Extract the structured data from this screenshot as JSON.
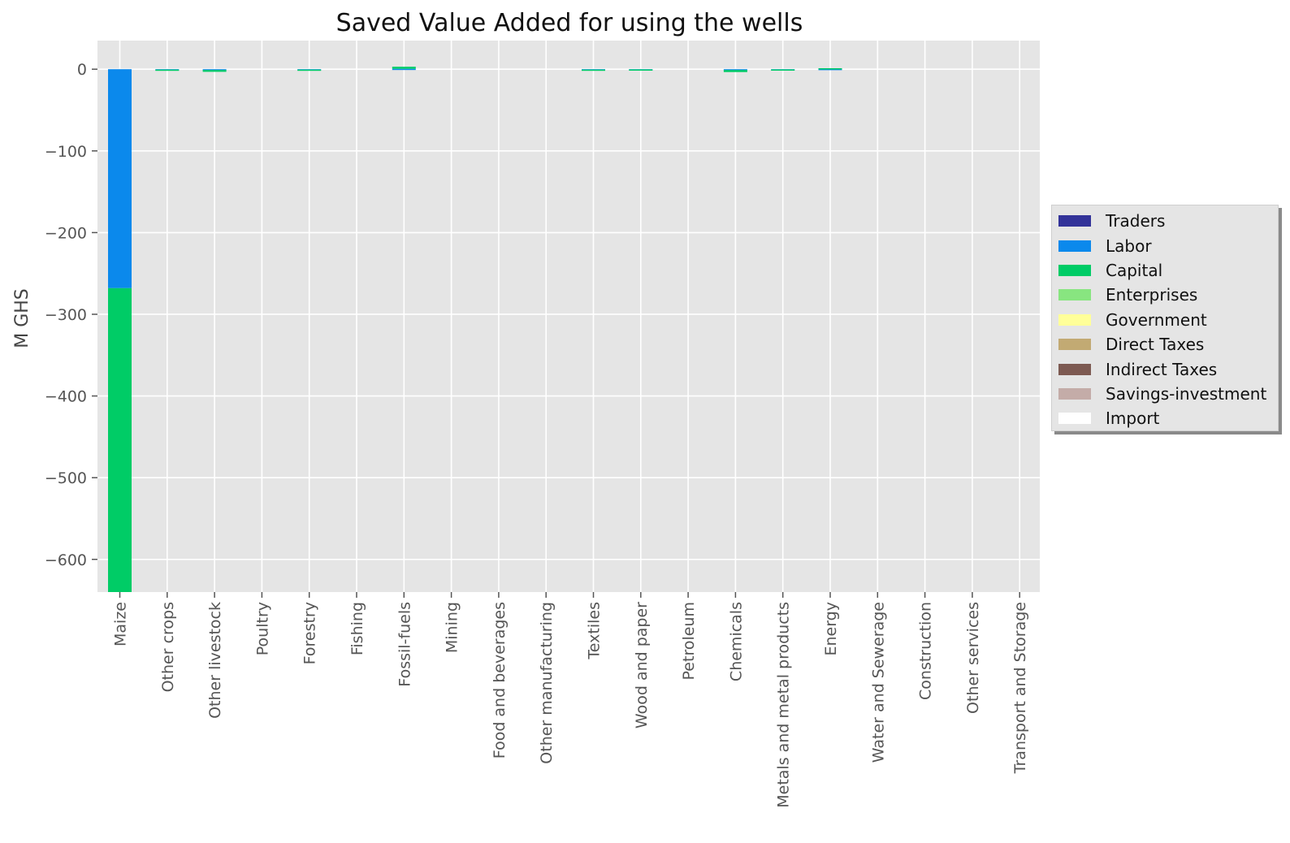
{
  "chart_data": {
    "type": "bar",
    "stacked": true,
    "title": "Saved Value Added for using the wells",
    "xlabel": "",
    "ylabel": "M GHS",
    "ylim": [
      -640,
      35
    ],
    "yticks": [
      0,
      -100,
      -200,
      -300,
      -400,
      -500,
      -600
    ],
    "grid": true,
    "legend_position": "right",
    "categories": [
      "Maize",
      "Other crops",
      "Other livestock",
      "Poultry",
      "Forestry",
      "Fishing",
      "Fossil-fuels",
      "Mining",
      "Food and beverages",
      "Other manufacturing",
      "Textiles",
      "Wood and paper",
      "Petroleum",
      "Chemicals",
      "Metals and metal products",
      "Energy",
      "Water and Sewerage",
      "Construction",
      "Other services",
      "Transport and Storage"
    ],
    "series": [
      {
        "name": "Traders",
        "color": "#333399",
        "values": [
          0,
          0,
          0,
          0,
          0,
          0,
          0,
          0,
          0,
          0,
          0,
          0,
          0,
          0,
          0,
          0,
          0,
          0,
          0,
          0
        ]
      },
      {
        "name": "Labor",
        "color": "#0b89ec",
        "values": [
          -268,
          -0.5,
          -1,
          0,
          -0.5,
          0,
          0.5,
          0,
          0,
          0,
          -0.5,
          -0.3,
          0,
          -1,
          -0.3,
          0.3,
          0,
          0,
          0,
          0
        ]
      },
      {
        "name": "Capital",
        "color": "#00cc66",
        "values": [
          -372,
          -0.8,
          -2.2,
          0,
          -1.2,
          0,
          2.5,
          0,
          0,
          0,
          -1.3,
          -0.7,
          0,
          -2.5,
          -0.8,
          0.9,
          0,
          0,
          0,
          0
        ]
      },
      {
        "name": "Enterprises",
        "color": "#88e580",
        "values": [
          0,
          0,
          0,
          0,
          0,
          0,
          0,
          0,
          0,
          0,
          0,
          0,
          0,
          0,
          0,
          0,
          0,
          0,
          0,
          0
        ]
      },
      {
        "name": "Government",
        "color": "#ffff99",
        "values": [
          0,
          0,
          0,
          0,
          0,
          0,
          0,
          0,
          0,
          0,
          0,
          0,
          0,
          0,
          0,
          0,
          0,
          0,
          0,
          0
        ]
      },
      {
        "name": "Direct Taxes",
        "color": "#c2aa73",
        "values": [
          0,
          0,
          0,
          0,
          0,
          0,
          0,
          0,
          0,
          0,
          0,
          0,
          0,
          0,
          0,
          0,
          0,
          0,
          0,
          0
        ]
      },
      {
        "name": "Indirect Taxes",
        "color": "#7d5a52",
        "values": [
          0,
          0,
          0,
          0,
          0,
          0,
          0,
          0,
          0,
          0,
          0,
          0,
          0,
          0,
          0,
          0,
          0,
          0,
          0,
          0
        ]
      },
      {
        "name": "Savings-investment",
        "color": "#c4aca8",
        "values": [
          0,
          0,
          0,
          0,
          0,
          0,
          0,
          0,
          0,
          0,
          0,
          0,
          0,
          0,
          0,
          0,
          0,
          0,
          0,
          0
        ]
      },
      {
        "name": "Import",
        "color": "#ffffff",
        "values": [
          0,
          0,
          0,
          0,
          0,
          0,
          0,
          0,
          0,
          0,
          0,
          0,
          0,
          0,
          0,
          0,
          0,
          0,
          0,
          0
        ]
      }
    ]
  }
}
